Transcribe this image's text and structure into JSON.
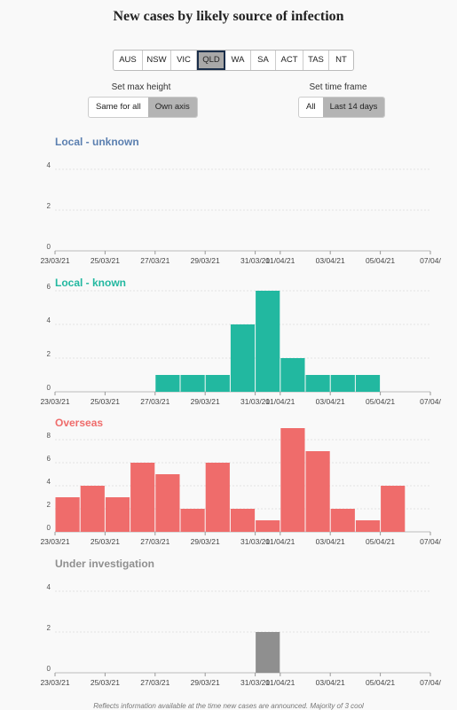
{
  "title": "New cases by likely source of infection",
  "states": [
    "AUS",
    "NSW",
    "VIC",
    "QLD",
    "WA",
    "SA",
    "ACT",
    "TAS",
    "NT"
  ],
  "active_state": "QLD",
  "max_height": {
    "label": "Set max height",
    "options": [
      "Same for all",
      "Own axis"
    ],
    "active": "Own axis"
  },
  "time_frame": {
    "label": "Set time frame",
    "options": [
      "All",
      "Last 14 days"
    ],
    "active": "Last 14 days"
  },
  "footnote": "Reflects information available at the time new cases are announced. Majority of 3 cool",
  "chart_data": [
    {
      "type": "bar",
      "title": "Local - unknown",
      "color": "#5b7fb0",
      "x": [
        "22/03/21",
        "23/03/21",
        "24/03/21",
        "25/03/21",
        "26/03/21",
        "27/03/21",
        "28/03/21",
        "29/03/21",
        "30/03/21",
        "31/03/21",
        "01/04/21",
        "02/04/21",
        "03/04/21",
        "04/04/21",
        "05/04/21",
        "06/04/21"
      ],
      "values": [
        0,
        0,
        0,
        0,
        0,
        0,
        0,
        0,
        0,
        0,
        0,
        0,
        0,
        0,
        0,
        0
      ],
      "ylim": [
        0,
        4
      ],
      "yticks": [
        0,
        2,
        4
      ],
      "xticks": [
        "23/03/21",
        "25/03/21",
        "27/03/21",
        "29/03/21",
        "31/03/21",
        "01/04/21",
        "03/04/21",
        "05/04/21",
        "07/04/"
      ]
    },
    {
      "type": "bar",
      "title": "Local - known",
      "color": "#22b8a0",
      "x": [
        "22/03/21",
        "23/03/21",
        "24/03/21",
        "25/03/21",
        "26/03/21",
        "27/03/21",
        "28/03/21",
        "29/03/21",
        "30/03/21",
        "31/03/21",
        "01/04/21",
        "02/04/21",
        "03/04/21",
        "04/04/21",
        "05/04/21",
        "06/04/21"
      ],
      "values": [
        0,
        0,
        0,
        0,
        1,
        1,
        1,
        4,
        6,
        2,
        1,
        1,
        1,
        0,
        0,
        0
      ],
      "ylim": [
        0,
        6
      ],
      "yticks": [
        0,
        2,
        4,
        6
      ],
      "xticks": [
        "23/03/21",
        "25/03/21",
        "27/03/21",
        "29/03/21",
        "31/03/21",
        "01/04/21",
        "03/04/21",
        "05/04/21",
        "07/04/"
      ]
    },
    {
      "type": "bar",
      "title": "Overseas",
      "color": "#ef6c6b",
      "x": [
        "22/03/21",
        "23/03/21",
        "24/03/21",
        "25/03/21",
        "26/03/21",
        "27/03/21",
        "28/03/21",
        "29/03/21",
        "30/03/21",
        "31/03/21",
        "01/04/21",
        "02/04/21",
        "03/04/21",
        "04/04/21",
        "05/04/21",
        "06/04/21"
      ],
      "values": [
        3,
        4,
        3,
        6,
        5,
        2,
        6,
        2,
        1,
        9,
        7,
        2,
        1,
        4,
        0,
        0
      ],
      "ylim": [
        0,
        8
      ],
      "yticks": [
        0,
        2,
        4,
        6,
        8
      ],
      "xticks": [
        "23/03/21",
        "25/03/21",
        "27/03/21",
        "29/03/21",
        "31/03/21",
        "01/04/21",
        "03/04/21",
        "05/04/21",
        "07/04/"
      ]
    },
    {
      "type": "bar",
      "title": "Under investigation",
      "color": "#8f8f8f",
      "x": [
        "22/03/21",
        "23/03/21",
        "24/03/21",
        "25/03/21",
        "26/03/21",
        "27/03/21",
        "28/03/21",
        "29/03/21",
        "30/03/21",
        "31/03/21",
        "01/04/21",
        "02/04/21",
        "03/04/21",
        "04/04/21",
        "05/04/21",
        "06/04/21"
      ],
      "values": [
        0,
        0,
        0,
        0,
        0,
        0,
        0,
        0,
        2,
        0,
        0,
        0,
        0,
        0,
        0,
        0
      ],
      "ylim": [
        0,
        4
      ],
      "yticks": [
        0,
        2,
        4
      ],
      "xticks": [
        "23/03/21",
        "25/03/21",
        "27/03/21",
        "29/03/21",
        "31/03/21",
        "01/04/21",
        "03/04/21",
        "05/04/21",
        "07/04/"
      ]
    }
  ]
}
